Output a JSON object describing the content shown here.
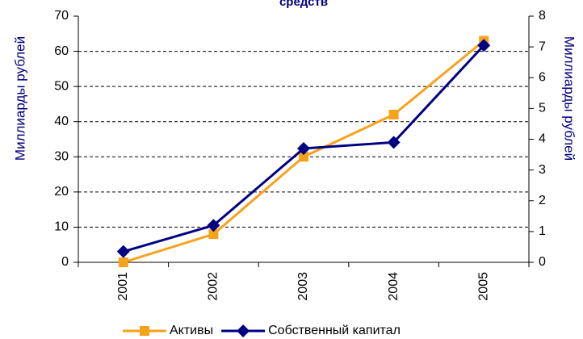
{
  "chart_data": {
    "type": "line",
    "title": "средств",
    "categories": [
      "2001",
      "2002",
      "2003",
      "2004",
      "2005"
    ],
    "series": [
      {
        "name": "Активы",
        "color": "#f7a21b",
        "marker": "square",
        "values": [
          0,
          8,
          30,
          42,
          63
        ]
      },
      {
        "name": "Собственный капитал",
        "color": "#000080",
        "marker": "diamond",
        "axis": "y2",
        "values": [
          0.35,
          1.2,
          3.7,
          3.9,
          7.05
        ]
      }
    ],
    "ylabel": "Миллиарды рублей",
    "y2label": "Миллиарды рублей",
    "ylim": [
      0,
      70
    ],
    "yticks": [
      0,
      10,
      20,
      30,
      40,
      50,
      60,
      70
    ],
    "y2lim": [
      0,
      8
    ],
    "y2ticks": [
      0,
      1,
      2,
      3,
      4,
      5,
      6,
      7,
      8
    ],
    "grid": true,
    "legend": "bottom"
  }
}
